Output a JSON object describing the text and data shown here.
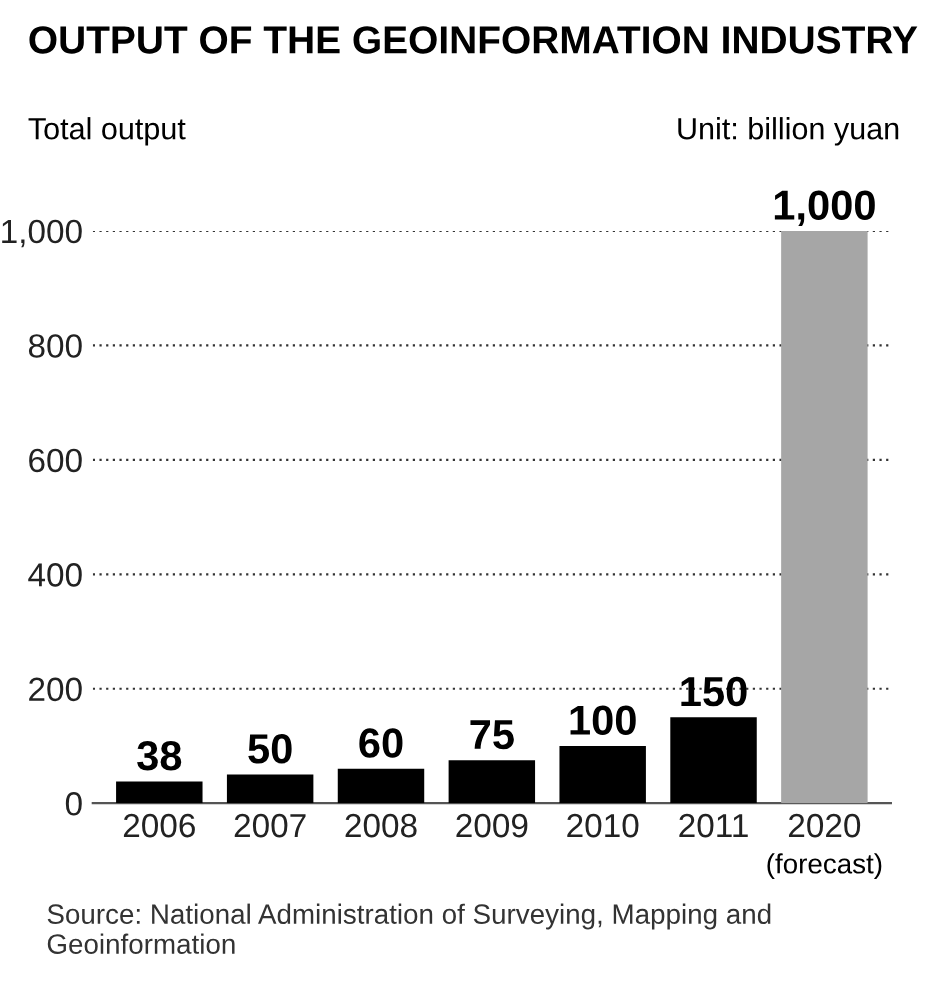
{
  "chart_data": {
    "type": "bar",
    "title": "OUTPUT OF THE GEOINFORMATION INDUSTRY",
    "ylabel": "Total output",
    "categories": [
      "2006",
      "2007",
      "2008",
      "2009",
      "2010",
      "2011",
      "2020"
    ],
    "values": [
      38,
      50,
      60,
      75,
      100,
      150,
      1000
    ],
    "colors": [
      "#000000",
      "#000000",
      "#000000",
      "#000000",
      "#000000",
      "#000000",
      "#a6a6a6"
    ],
    "value_labels": [
      "38",
      "50",
      "60",
      "75",
      "100",
      "150",
      "1,000"
    ],
    "ylim": [
      0,
      1000
    ],
    "yticks": [
      0,
      200,
      400,
      600,
      800,
      {
        "value": 1000,
        "label": "1,000"
      }
    ],
    "grid": "y",
    "annotations": [
      "Unit: billion yuan",
      "(forecast)",
      "Source: National Administration of Surveying, Mapping and Geoinformation"
    ]
  }
}
